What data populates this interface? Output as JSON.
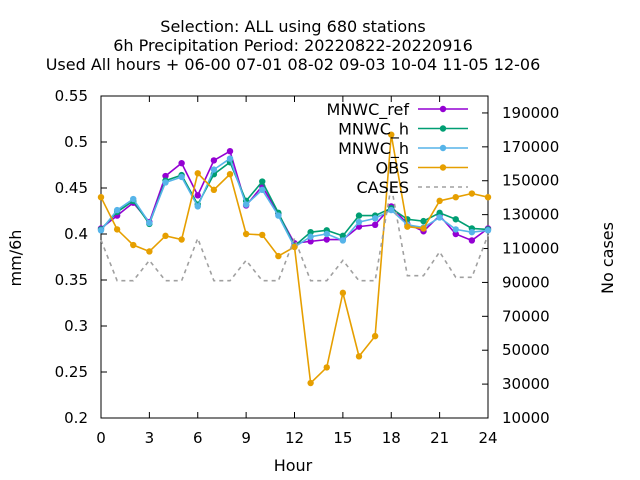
{
  "chart_data": {
    "type": "line",
    "title_lines": [
      "Selection: ALL using   680 stations",
      "6h Precipitation   Period: 20220822-20220916",
      "Used  All hours  + 06-00 07-01 08-02 09-03 10-04 11-05 12-06"
    ],
    "xlabel": "Hour",
    "ylabel": "mm/6h",
    "y2label": "No cases",
    "xlim": [
      0,
      24
    ],
    "ylim": [
      0.2,
      0.55
    ],
    "y2lim": [
      10000,
      200000
    ],
    "x_ticks": [
      "0",
      "3",
      "6",
      "9",
      "12",
      "15",
      "18",
      "21",
      "24"
    ],
    "y_ticks": [
      "0.2",
      "0.25",
      "0.3",
      "0.35",
      "0.4",
      "0.45",
      "0.5",
      "0.55"
    ],
    "y2_ticks": [
      "10000",
      "30000",
      "50000",
      "70000",
      "90000",
      "110000",
      "130000",
      "150000",
      "170000",
      "190000"
    ],
    "legend_position": "top-right",
    "grid": false,
    "x": [
      0,
      1,
      2,
      3,
      4,
      5,
      6,
      7,
      8,
      9,
      10,
      11,
      12,
      13,
      14,
      15,
      16,
      17,
      18,
      19,
      20,
      21,
      22,
      23,
      24
    ],
    "series": [
      {
        "name": "MNWC_ref",
        "color": "#9400d3",
        "marker": "circle",
        "axis": "y1",
        "values": [
          0.406,
          0.42,
          0.434,
          0.413,
          0.463,
          0.477,
          0.442,
          0.48,
          0.49,
          0.431,
          0.452,
          0.422,
          0.39,
          0.392,
          0.394,
          0.394,
          0.408,
          0.41,
          0.43,
          0.411,
          0.403,
          0.42,
          0.4,
          0.393,
          0.406
        ]
      },
      {
        "name": "MNWC_h",
        "color": "#009e73",
        "marker": "circle",
        "axis": "y1",
        "values": [
          0.405,
          0.424,
          0.436,
          0.411,
          0.458,
          0.464,
          0.432,
          0.465,
          0.478,
          0.436,
          0.457,
          0.423,
          0.387,
          0.402,
          0.404,
          0.398,
          0.42,
          0.42,
          0.428,
          0.416,
          0.414,
          0.423,
          0.416,
          0.406,
          0.405
        ]
      },
      {
        "name": "MNWC_h",
        "color": "#56b4e9",
        "marker": "circle",
        "axis": "y1",
        "values": [
          0.404,
          0.426,
          0.438,
          0.412,
          0.456,
          0.462,
          0.43,
          0.47,
          0.482,
          0.432,
          0.448,
          0.42,
          0.386,
          0.397,
          0.4,
          0.393,
          0.413,
          0.417,
          0.426,
          0.41,
          0.407,
          0.418,
          0.405,
          0.402,
          0.404
        ]
      },
      {
        "name": "OBS",
        "color": "#e69f00",
        "marker": "circle",
        "axis": "y1",
        "values": [
          0.44,
          0.405,
          0.388,
          0.381,
          0.398,
          0.394,
          0.466,
          0.448,
          0.465,
          0.4,
          0.399,
          0.376,
          0.386,
          0.238,
          0.255,
          0.336,
          0.267,
          0.289,
          0.508,
          0.408,
          0.406,
          0.436,
          0.44,
          0.444,
          0.44
        ]
      },
      {
        "name": "CASES",
        "color": "#a0a0a0",
        "dash": true,
        "axis": "y2",
        "values": [
          115000,
          91000,
          91000,
          103000,
          91000,
          91000,
          116000,
          91000,
          91000,
          103000,
          91000,
          91000,
          116000,
          91000,
          91000,
          103000,
          91000,
          91000,
          147000,
          94000,
          94000,
          108000,
          93000,
          93000,
          118000
        ]
      }
    ],
    "legend_labels": [
      "MNWC_ref",
      "MNWC_h",
      "MNWC_h",
      "OBS",
      "CASES"
    ]
  }
}
